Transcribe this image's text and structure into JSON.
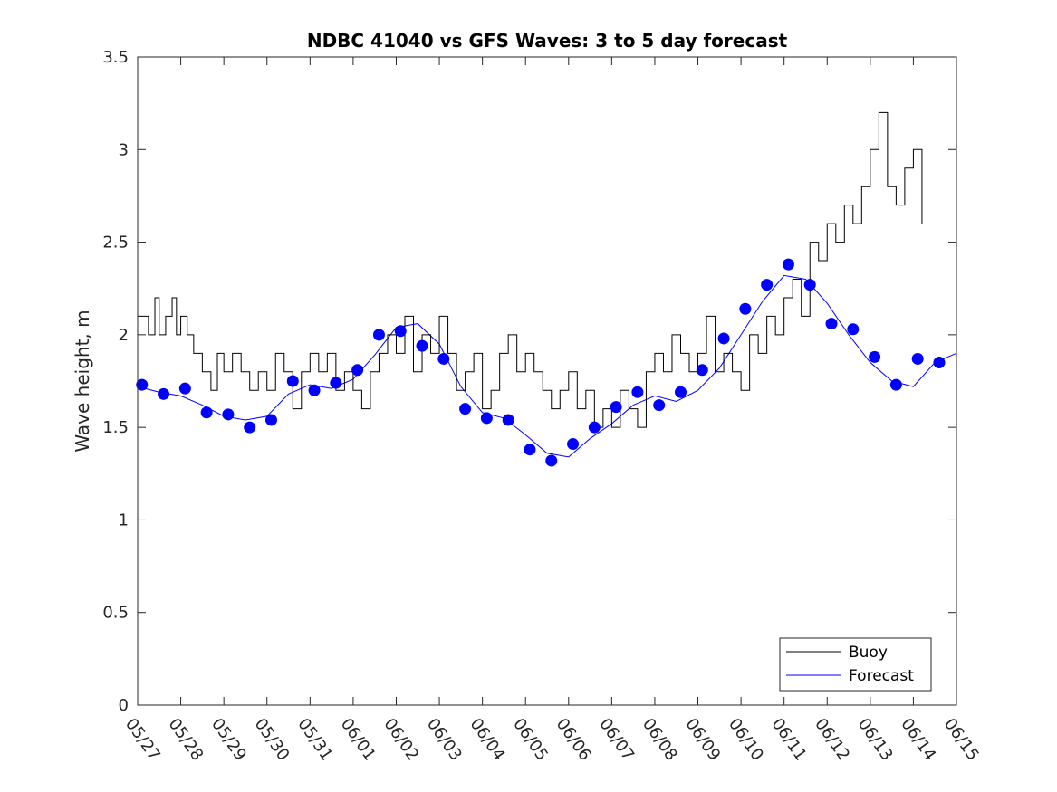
{
  "chart_data": {
    "type": "line",
    "title": "NDBC 41040 vs GFS Waves: 3 to 5 day forecast",
    "ylabel": "Wave height, m",
    "xlabel": "",
    "xlim": [
      "05/27",
      "06/15"
    ],
    "ylim": [
      0,
      3.5
    ],
    "yticks": [
      "0",
      "0.5",
      "1",
      "1.5",
      "2",
      "2.5",
      "3",
      "3.5"
    ],
    "xticks": [
      "05/27",
      "05/28",
      "05/29",
      "05/30",
      "05/31",
      "06/01",
      "06/02",
      "06/03",
      "06/04",
      "06/05",
      "06/06",
      "06/07",
      "06/08",
      "06/09",
      "06/10",
      "06/11",
      "06/12",
      "06/13",
      "06/14",
      "06/15"
    ],
    "grid": false,
    "legend": {
      "position": "bottom-right",
      "entries": [
        "Buoy",
        "Forecast"
      ]
    },
    "colors": {
      "buoy": "#000000",
      "forecast": "#0000ff"
    },
    "series": [
      {
        "name": "Buoy",
        "x_days": [
          0,
          0.25,
          0.4,
          0.5,
          0.65,
          0.8,
          0.9,
          1.0,
          1.15,
          1.3,
          1.5,
          1.7,
          1.85,
          2.0,
          2.2,
          2.4,
          2.6,
          2.8,
          3.0,
          3.2,
          3.4,
          3.6,
          3.8,
          4.0,
          4.2,
          4.4,
          4.6,
          4.8,
          5.0,
          5.2,
          5.4,
          5.6,
          5.8,
          6.0,
          6.2,
          6.4,
          6.6,
          6.8,
          7.0,
          7.2,
          7.4,
          7.6,
          7.8,
          8.0,
          8.2,
          8.4,
          8.6,
          8.8,
          9.0,
          9.2,
          9.4,
          9.6,
          9.8,
          10.0,
          10.2,
          10.4,
          10.6,
          10.8,
          11.0,
          11.2,
          11.4,
          11.6,
          11.8,
          12.0,
          12.2,
          12.4,
          12.6,
          12.8,
          13.0,
          13.2,
          13.4,
          13.6,
          13.8,
          14.0,
          14.2,
          14.4,
          14.6,
          14.8,
          15.0,
          15.2,
          15.4,
          15.6,
          15.8,
          16.0,
          16.2,
          16.4,
          16.6,
          16.8,
          17.0,
          17.2,
          17.4,
          17.6,
          17.8,
          18.0,
          18.2
        ],
        "values": [
          2.1,
          2.0,
          2.2,
          2.0,
          2.1,
          2.2,
          2.0,
          2.1,
          2.0,
          1.9,
          1.8,
          1.7,
          1.9,
          1.8,
          1.9,
          1.8,
          1.7,
          1.8,
          1.7,
          1.9,
          1.8,
          1.6,
          1.8,
          1.9,
          1.8,
          1.9,
          1.7,
          1.8,
          1.7,
          1.6,
          1.8,
          1.9,
          2.0,
          1.9,
          2.1,
          1.8,
          2.0,
          1.9,
          2.1,
          1.9,
          1.7,
          1.8,
          1.9,
          1.6,
          1.7,
          1.9,
          2.0,
          1.8,
          1.9,
          1.8,
          1.7,
          1.6,
          1.7,
          1.8,
          1.6,
          1.7,
          1.5,
          1.6,
          1.5,
          1.7,
          1.6,
          1.5,
          1.8,
          1.9,
          1.8,
          2.0,
          1.9,
          1.8,
          1.9,
          2.1,
          1.8,
          1.9,
          1.8,
          1.7,
          2.0,
          1.9,
          2.1,
          2.0,
          2.2,
          2.3,
          2.1,
          2.5,
          2.4,
          2.6,
          2.5,
          2.7,
          2.6,
          2.8,
          3.0,
          3.2,
          2.8,
          2.7,
          2.9,
          3.0,
          2.6
        ]
      },
      {
        "name": "Forecast",
        "markers_x_days": [
          0.1,
          0.6,
          1.1,
          1.6,
          2.1,
          2.6,
          3.1,
          3.6,
          4.1,
          4.6,
          5.1,
          5.6,
          6.1,
          6.6,
          7.1,
          7.6,
          8.1,
          8.6,
          9.1,
          9.6,
          10.1,
          10.6,
          11.1,
          11.6,
          12.1,
          12.6,
          13.1,
          13.6,
          14.1,
          14.6,
          15.1,
          15.6,
          16.1,
          16.6,
          17.1,
          17.6,
          18.1,
          18.6
        ],
        "markers": [
          1.73,
          1.68,
          1.71,
          1.58,
          1.57,
          1.5,
          1.54,
          1.75,
          1.7,
          1.74,
          1.81,
          2.0,
          2.02,
          1.94,
          1.87,
          1.6,
          1.55,
          1.54,
          1.38,
          1.32,
          1.41,
          1.5,
          1.61,
          1.69,
          1.62,
          1.69,
          1.81,
          1.98,
          2.14,
          2.27,
          2.38,
          2.27,
          2.06,
          2.03,
          1.88,
          1.73,
          1.87,
          1.85
        ],
        "x_days": [
          0,
          0.5,
          1.0,
          1.5,
          2.0,
          2.5,
          3.0,
          3.5,
          4.0,
          4.5,
          5.0,
          5.5,
          6.0,
          6.5,
          7.0,
          7.5,
          8.0,
          8.5,
          9.0,
          9.5,
          10.0,
          10.5,
          11.0,
          11.5,
          12.0,
          12.5,
          13.0,
          13.5,
          14.0,
          14.5,
          15.0,
          15.5,
          16.0,
          16.5,
          17.0,
          17.5,
          18.0,
          18.5,
          19.0
        ],
        "values": [
          1.72,
          1.69,
          1.67,
          1.62,
          1.56,
          1.54,
          1.56,
          1.68,
          1.73,
          1.71,
          1.76,
          1.89,
          2.04,
          2.06,
          1.95,
          1.72,
          1.58,
          1.55,
          1.46,
          1.36,
          1.34,
          1.44,
          1.52,
          1.62,
          1.67,
          1.64,
          1.7,
          1.82,
          2.0,
          2.18,
          2.32,
          2.3,
          2.17,
          2.0,
          1.85,
          1.75,
          1.72,
          1.85,
          1.9
        ]
      }
    ]
  }
}
